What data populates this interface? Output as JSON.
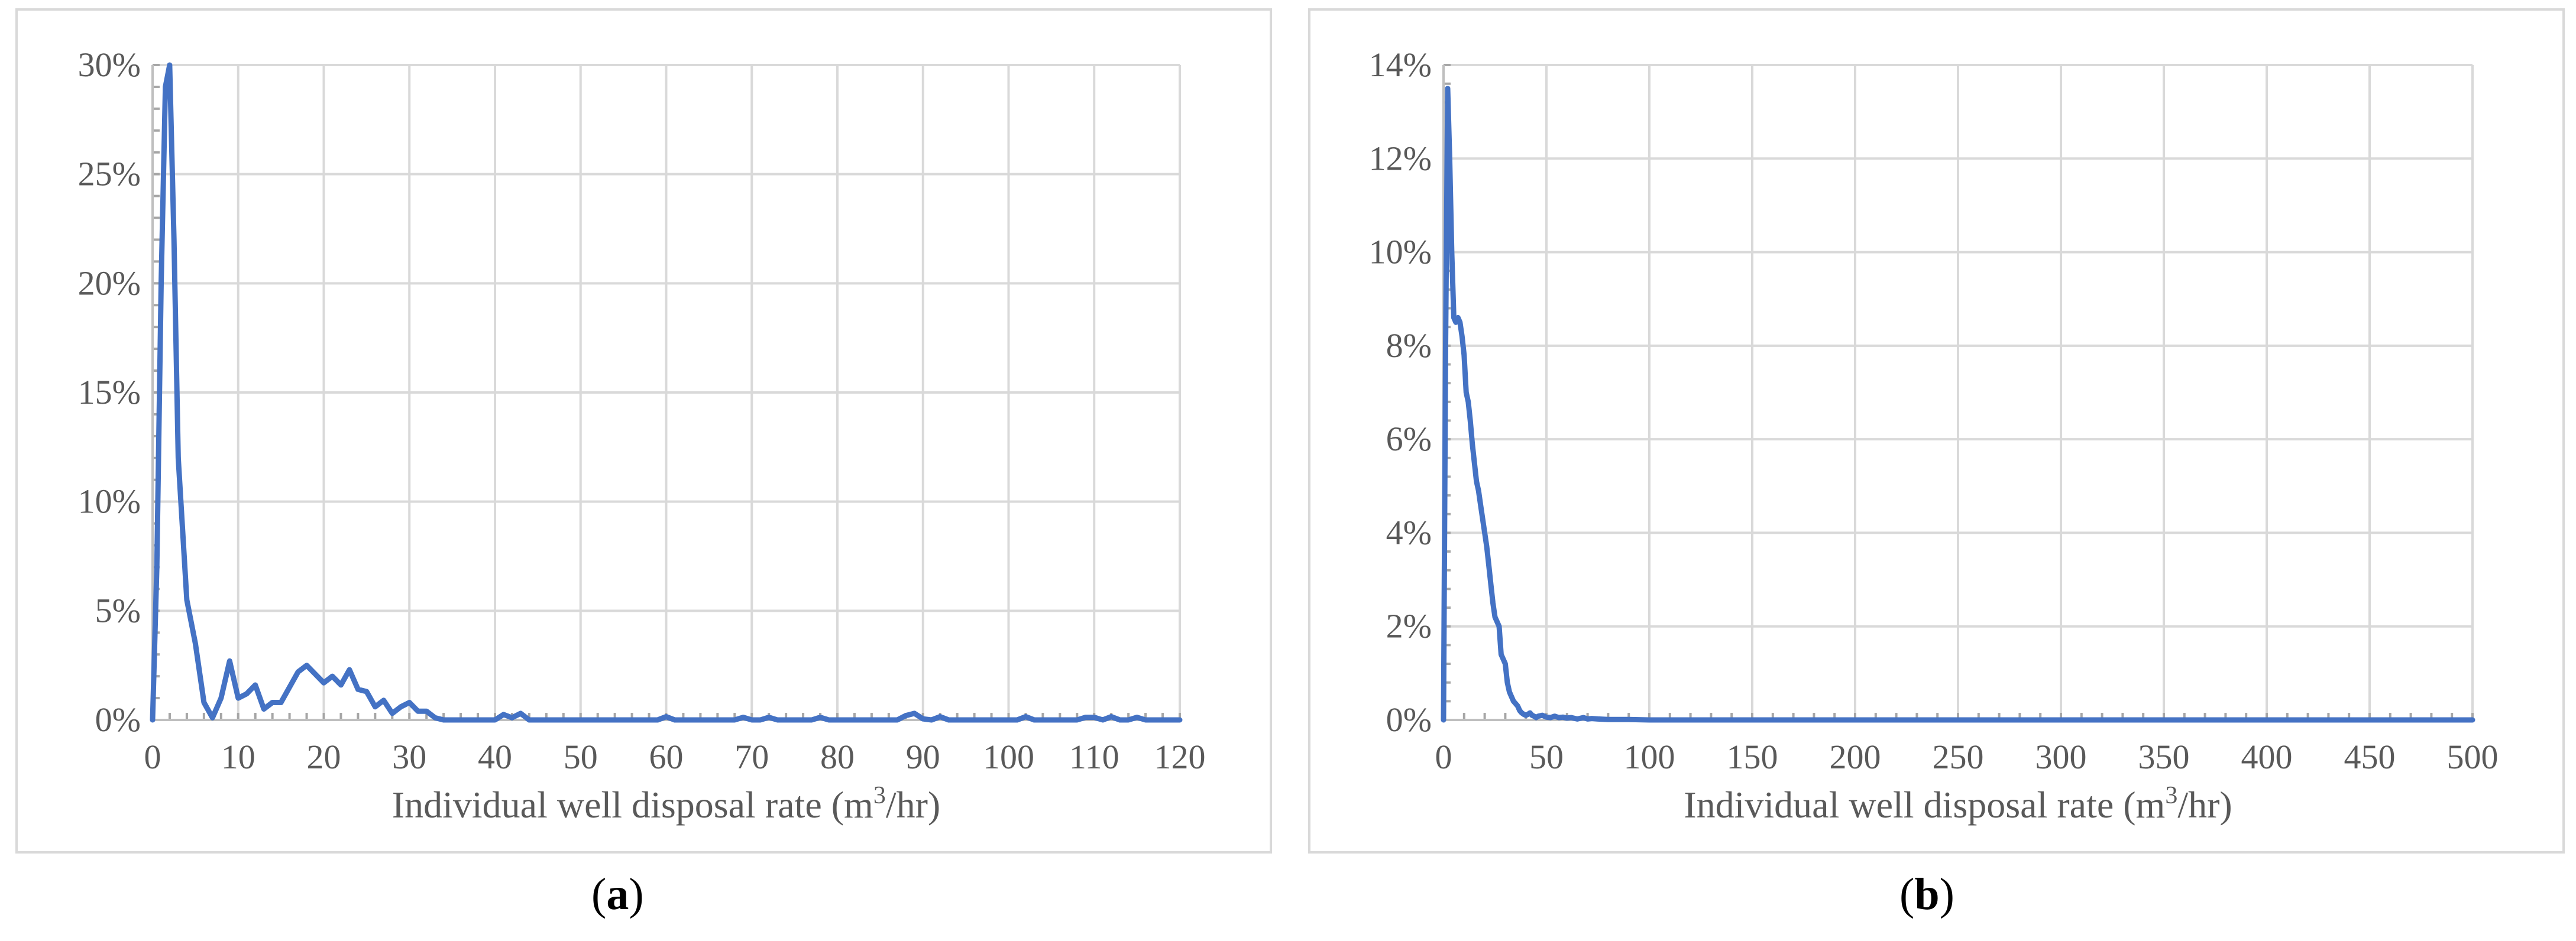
{
  "chart_data": [
    {
      "panel": "a",
      "type": "line",
      "xlabel_main": "Individual well disposal rate (m",
      "xlabel_sup": "3",
      "xlabel_tail": "/hr)",
      "xlim": [
        0,
        120
      ],
      "ylim": [
        0,
        30
      ],
      "xticks": [
        0,
        10,
        20,
        30,
        40,
        50,
        60,
        70,
        80,
        90,
        100,
        110,
        120
      ],
      "xtick_labels": [
        "0",
        "10",
        "20",
        "30",
        "40",
        "50",
        "60",
        "70",
        "80",
        "90",
        "100",
        "110",
        "120"
      ],
      "yticks": [
        0,
        5,
        10,
        15,
        20,
        25,
        30
      ],
      "ytick_labels": [
        "0%",
        "5%",
        "10%",
        "15%",
        "20%",
        "25%",
        "30%"
      ],
      "grid": true,
      "color": "#4472c4",
      "series": [
        {
          "x": [
            0,
            0.5,
            1,
            1.5,
            2,
            2.5,
            3,
            4,
            5,
            6,
            7,
            8,
            9,
            10,
            11,
            12,
            13,
            14,
            15,
            16,
            17,
            18,
            19,
            20,
            21,
            22,
            23,
            24,
            25,
            26,
            27,
            28,
            29,
            30,
            31,
            32,
            33,
            34,
            40,
            41,
            42,
            43,
            44,
            59,
            60,
            61,
            68,
            69,
            70,
            71,
            72,
            73,
            77,
            78,
            79,
            87,
            88,
            89,
            90,
            91,
            92,
            93,
            101,
            102,
            103,
            108,
            109,
            110,
            111,
            112,
            113,
            114,
            115,
            116,
            117,
            120
          ],
          "y": [
            0,
            7,
            20,
            29,
            30,
            22,
            12,
            5.5,
            3.5,
            0.8,
            0.1,
            1.0,
            2.7,
            1.0,
            1.2,
            1.6,
            0.5,
            0.8,
            0.8,
            1.5,
            2.2,
            2.5,
            2.1,
            1.7,
            2.0,
            1.6,
            2.3,
            1.4,
            1.3,
            0.6,
            0.9,
            0.3,
            0.6,
            0.8,
            0.4,
            0.4,
            0.1,
            0,
            0,
            0.25,
            0.1,
            0.3,
            0,
            0,
            0.15,
            0,
            0,
            0.12,
            0,
            0,
            0.12,
            0,
            0,
            0.12,
            0,
            0,
            0.2,
            0.3,
            0.05,
            0,
            0.15,
            0,
            0,
            0.15,
            0,
            0,
            0.12,
            0.12,
            0,
            0.15,
            0,
            0,
            0.12,
            0,
            0,
            0
          ]
        }
      ]
    },
    {
      "panel": "b",
      "type": "line",
      "xlabel_main": "Individual well disposal rate (m",
      "xlabel_sup": "3",
      "xlabel_tail": "/hr)",
      "xlim": [
        0,
        500
      ],
      "ylim": [
        0,
        14
      ],
      "xticks": [
        0,
        50,
        100,
        150,
        200,
        250,
        300,
        350,
        400,
        450,
        500
      ],
      "xtick_labels": [
        "0",
        "50",
        "100",
        "150",
        "200",
        "250",
        "300",
        "350",
        "400",
        "450",
        "500"
      ],
      "yticks": [
        0,
        2,
        4,
        6,
        8,
        10,
        12,
        14
      ],
      "ytick_labels": [
        "0%",
        "2%",
        "4%",
        "6%",
        "8%",
        "10%",
        "12%",
        "14%"
      ],
      "grid": true,
      "color": "#4472c4",
      "series": [
        {
          "x": [
            0,
            1,
            2,
            3,
            4,
            5,
            6,
            7,
            8,
            9,
            10,
            11,
            12,
            13,
            14,
            15,
            16,
            17,
            18,
            19,
            20,
            21,
            22,
            23,
            24,
            25,
            26,
            27,
            28,
            29,
            30,
            31,
            32,
            33,
            34,
            35,
            36,
            37,
            38,
            39,
            40,
            41,
            42,
            43,
            44,
            45,
            46,
            48,
            50,
            52,
            54,
            56,
            58,
            60,
            62,
            65,
            68,
            70,
            72,
            75,
            80,
            90,
            100,
            150,
            200,
            300,
            400,
            500
          ],
          "y": [
            0,
            8,
            13.5,
            12,
            10,
            8.6,
            8.5,
            8.6,
            8.5,
            8.2,
            7.8,
            7.0,
            6.8,
            6.4,
            5.9,
            5.5,
            5.1,
            4.9,
            4.6,
            4.3,
            4.0,
            3.7,
            3.3,
            2.9,
            2.5,
            2.2,
            2.1,
            2.0,
            1.4,
            1.3,
            1.2,
            0.8,
            0.6,
            0.5,
            0.4,
            0.35,
            0.3,
            0.2,
            0.15,
            0.12,
            0.1,
            0.12,
            0.15,
            0.1,
            0.08,
            0.05,
            0.08,
            0.1,
            0.06,
            0.05,
            0.08,
            0.05,
            0.06,
            0.04,
            0.05,
            0.02,
            0.05,
            0.02,
            0.03,
            0.02,
            0.01,
            0.01,
            0,
            0,
            0,
            0,
            0,
            0
          ]
        }
      ]
    }
  ],
  "captions": [
    {
      "open": "(",
      "letter": "a",
      "close": ")"
    },
    {
      "open": "(",
      "letter": "b",
      "close": ")"
    }
  ]
}
